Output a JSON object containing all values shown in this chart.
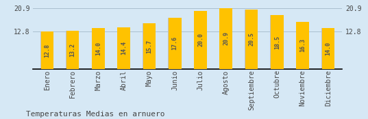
{
  "months": [
    "Enero",
    "Febrero",
    "Marzo",
    "Abril",
    "Mayo",
    "Junio",
    "Julio",
    "Agosto",
    "Septiembre",
    "Octubre",
    "Noviembre",
    "Diciembre"
  ],
  "values": [
    12.8,
    13.2,
    14.0,
    14.4,
    15.7,
    17.6,
    20.0,
    20.9,
    20.5,
    18.5,
    16.3,
    14.0
  ],
  "gray_values": [
    12.8,
    13.2,
    14.0,
    14.4,
    15.7,
    17.6,
    20.0,
    20.9,
    20.5,
    18.5,
    16.3,
    14.0
  ],
  "bar_color": "#FFC200",
  "gray_color": "#C0C0C0",
  "bg_color": "#D6E8F5",
  "ylim_min": 0,
  "ylim_max": 22.5,
  "yticks": [
    12.8,
    20.9
  ],
  "title": "Temperaturas Medias en arnuero",
  "title_fontsize": 8,
  "value_fontsize": 6,
  "axis_fontsize": 7,
  "grid_color": "#AABFCF",
  "text_color": "#555555",
  "yellow_bar_width": 0.5,
  "gray_bar_width": 0.18
}
